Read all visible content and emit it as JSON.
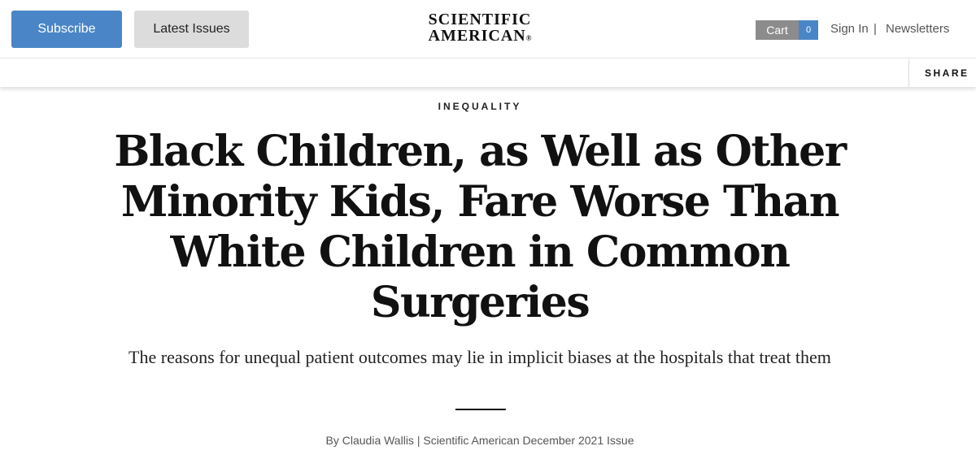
{
  "header": {
    "subscribe_label": "Subscribe",
    "latest_issues_label": "Latest Issues",
    "logo_line1": "SCIENTIFIC",
    "logo_line2": "AMERICAN",
    "logo_mark": "®",
    "cart_label": "Cart",
    "cart_count": "0",
    "sign_in_label": "Sign In",
    "separator": "|",
    "newsletters_label": "Newsletters"
  },
  "sharebar": {
    "share_label": "SHARE"
  },
  "article": {
    "category": "INEQUALITY",
    "headline": "Black Children, as Well as Other Minority Kids, Fare Worse Than White Children in Common Surgeries",
    "dek": "The reasons for unequal patient outcomes may lie in implicit biases at the hospitals that treat them",
    "byline": {
      "prefix": "By ",
      "author": "Claudia Wallis",
      "separator": " | ",
      "issue": "Scientific American December 2021 Issue"
    }
  },
  "colors": {
    "subscribe_bg": "#4a86c7",
    "latest_bg": "#dcdcdc",
    "cart_bg": "#8c8c8c",
    "cart_count_bg": "#4a86c7"
  }
}
